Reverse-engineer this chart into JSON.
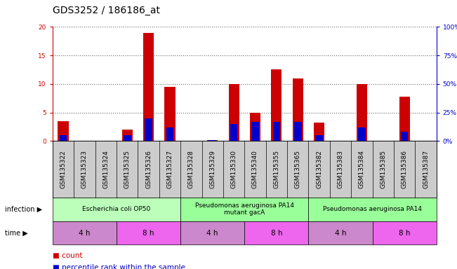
{
  "title": "GDS3252 / 186186_at",
  "samples": [
    "GSM135322",
    "GSM135323",
    "GSM135324",
    "GSM135325",
    "GSM135326",
    "GSM135327",
    "GSM135328",
    "GSM135329",
    "GSM135330",
    "GSM135340",
    "GSM135355",
    "GSM135365",
    "GSM135382",
    "GSM135383",
    "GSM135384",
    "GSM135385",
    "GSM135386",
    "GSM135387"
  ],
  "counts": [
    3.5,
    0.0,
    0.0,
    2.0,
    19.0,
    9.5,
    0.0,
    0.2,
    10.0,
    5.0,
    12.5,
    11.0,
    3.2,
    0.0,
    10.0,
    0.0,
    7.8,
    0.0
  ],
  "percentiles": [
    5,
    0,
    0,
    5,
    20,
    12,
    0,
    1,
    15,
    17,
    17,
    17,
    5,
    0,
    12,
    0,
    8,
    0
  ],
  "ylim_left": [
    0,
    20
  ],
  "ylim_right": [
    0,
    100
  ],
  "yticks_left": [
    0,
    5,
    10,
    15,
    20
  ],
  "yticks_right": [
    0,
    25,
    50,
    75,
    100
  ],
  "ytick_labels_left": [
    "0",
    "5",
    "10",
    "15",
    "20"
  ],
  "ytick_labels_right": [
    "0%",
    "25%",
    "50%",
    "75%",
    "100%"
  ],
  "bar_color_count": "#cc0000",
  "bar_color_percentile": "#0000cc",
  "bar_width": 0.5,
  "infection_groups": [
    {
      "label": "Escherichia coli OP50",
      "start": 0,
      "end": 6,
      "color": "#bbffbb"
    },
    {
      "label": "Pseudomonas aeruginosa PA14\nmutant gacA",
      "start": 6,
      "end": 12,
      "color": "#99ff99"
    },
    {
      "label": "Pseudomonas aeruginosa PA14",
      "start": 12,
      "end": 18,
      "color": "#99ff99"
    }
  ],
  "time_groups": [
    {
      "label": "4 h",
      "start": 0,
      "end": 3,
      "color": "#cc88cc"
    },
    {
      "label": "8 h",
      "start": 3,
      "end": 6,
      "color": "#ee66ee"
    },
    {
      "label": "4 h",
      "start": 6,
      "end": 9,
      "color": "#cc88cc"
    },
    {
      "label": "8 h",
      "start": 9,
      "end": 12,
      "color": "#ee66ee"
    },
    {
      "label": "4 h",
      "start": 12,
      "end": 15,
      "color": "#cc88cc"
    },
    {
      "label": "8 h",
      "start": 15,
      "end": 18,
      "color": "#ee66ee"
    }
  ],
  "infection_label": "infection",
  "time_label": "time",
  "legend_count_label": "count",
  "legend_percentile_label": "percentile rank within the sample",
  "title_fontsize": 10,
  "tick_fontsize": 6.5,
  "label_fontsize": 8,
  "annotation_fontsize": 7.5
}
